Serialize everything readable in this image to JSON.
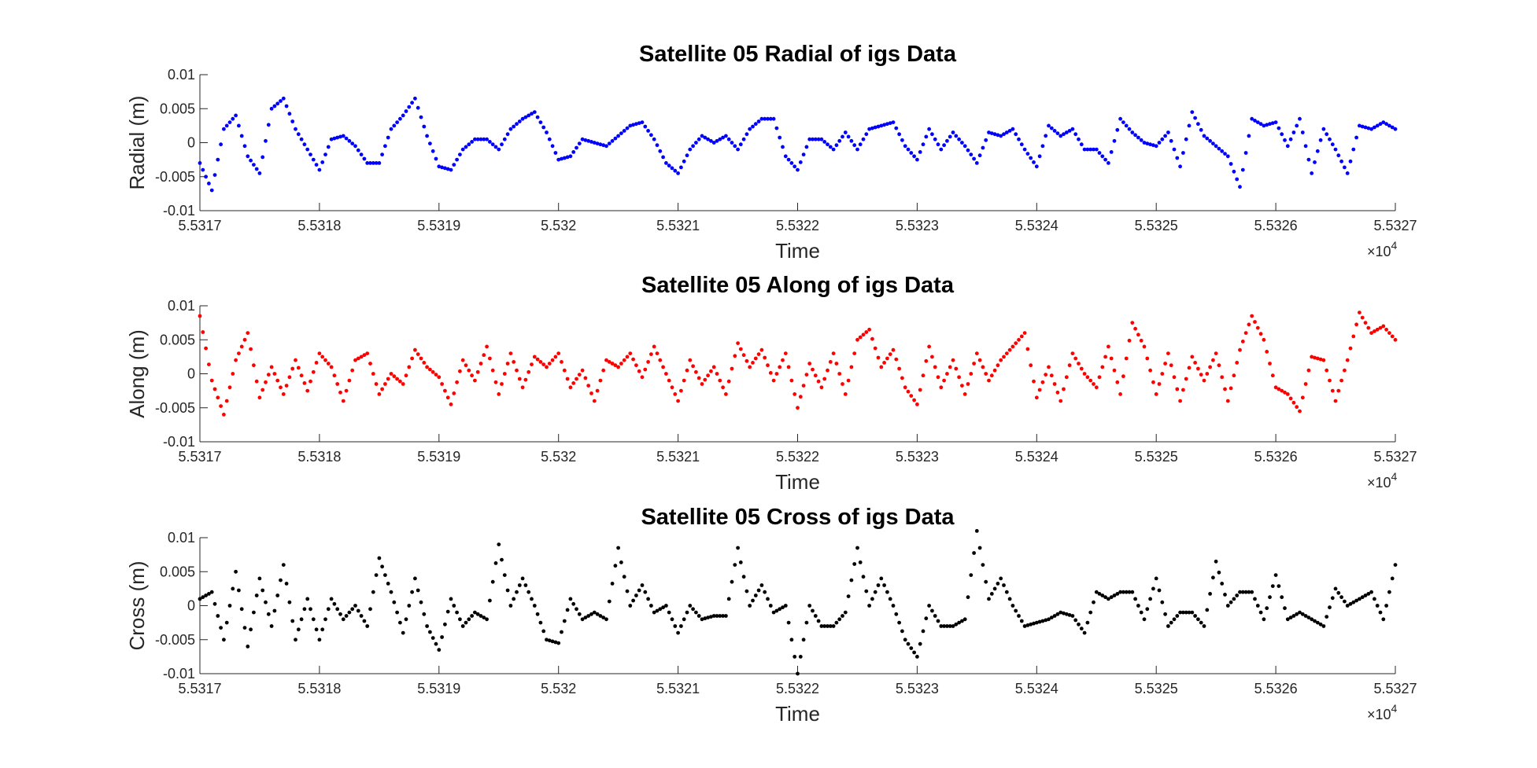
{
  "chart_data": [
    {
      "type": "scatter",
      "title": "Satellite 05 Radial of igs Data",
      "xlabel": "Time",
      "ylabel": "Radial (m)",
      "x_multiplier": "×10",
      "x_multiplier_exp": "4",
      "xlim": [
        55317,
        55327
      ],
      "ylim": [
        -0.01,
        0.01
      ],
      "xticks": [
        "5.5317",
        "5.5318",
        "5.5319",
        "5.532",
        "5.5321",
        "5.5322",
        "5.5323",
        "5.5324",
        "5.5325",
        "5.5326",
        "5.5327"
      ],
      "yticks": [
        "-0.01",
        "-0.005",
        "0",
        "0.005",
        "0.01"
      ],
      "color": "#0000ff",
      "series": [
        {
          "x": [
            55317.0,
            55317.1,
            55317.2,
            55317.3,
            55317.4,
            55317.5,
            55317.6,
            55317.7,
            55317.8,
            55317.9,
            55318.0,
            55318.1,
            55318.2,
            55318.3,
            55318.4,
            55318.5,
            55318.6,
            55318.7,
            55318.8,
            55318.9,
            55319.0,
            55319.1,
            55319.2,
            55319.3,
            55319.4,
            55319.5,
            55319.6,
            55319.7,
            55319.8,
            55319.9,
            55320.0,
            55320.1,
            55320.2,
            55320.3,
            55320.4,
            55320.5,
            55320.6,
            55320.7,
            55320.8,
            55320.9,
            55321.0,
            55321.1,
            55321.2,
            55321.3,
            55321.4,
            55321.5,
            55321.6,
            55321.7,
            55321.8,
            55321.9,
            55322.0,
            55322.1,
            55322.2,
            55322.3,
            55322.4,
            55322.5,
            55322.6,
            55322.7,
            55322.8,
            55322.9,
            55323.0,
            55323.1,
            55323.2,
            55323.3,
            55323.4,
            55323.5,
            55323.6,
            55323.7,
            55323.8,
            55323.9,
            55324.0,
            55324.1,
            55324.2,
            55324.3,
            55324.4,
            55324.5,
            55324.6,
            55324.7,
            55324.8,
            55324.9,
            55325.0,
            55325.1,
            55325.2,
            55325.3,
            55325.4,
            55325.5,
            55325.6,
            55325.7,
            55325.8,
            55325.9,
            55326.0,
            55326.1,
            55326.2,
            55326.3,
            55326.4,
            55326.5,
            55326.6,
            55326.7,
            55326.8,
            55326.9,
            55327.0
          ],
          "y": [
            -0.003,
            -0.007,
            0.002,
            0.004,
            -0.002,
            -0.0045,
            0.005,
            0.0065,
            0.002,
            -0.001,
            -0.004,
            0.0005,
            0.001,
            -0.0005,
            -0.003,
            -0.003,
            0.002,
            0.004,
            0.0065,
            0.001,
            -0.0035,
            -0.004,
            -0.001,
            0.0005,
            0.0005,
            -0.001,
            0.002,
            0.0035,
            0.0045,
            0.0015,
            -0.0025,
            -0.002,
            0.0005,
            0.0,
            -0.0005,
            0.001,
            0.0025,
            0.003,
            0.0005,
            -0.003,
            -0.0045,
            -0.001,
            0.001,
            0.0,
            0.001,
            -0.001,
            0.002,
            0.0035,
            0.0035,
            -0.002,
            -0.004,
            0.0005,
            0.0005,
            -0.001,
            0.0015,
            -0.001,
            0.002,
            0.0025,
            0.003,
            -0.0005,
            -0.0025,
            0.002,
            -0.001,
            0.0015,
            -0.0005,
            -0.003,
            0.0015,
            0.001,
            0.002,
            -0.001,
            -0.0035,
            0.0025,
            0.001,
            0.002,
            -0.001,
            -0.001,
            -0.003,
            0.0035,
            0.0015,
            0.0,
            -0.0005,
            0.0015,
            -0.0035,
            0.0045,
            0.001,
            -0.0005,
            -0.002,
            -0.0065,
            0.0035,
            0.0025,
            0.003,
            -0.0005,
            0.0035,
            -0.0045,
            0.002,
            -0.001,
            -0.0045,
            0.0025,
            0.002,
            0.003,
            0.002
          ]
        }
      ]
    },
    {
      "type": "scatter",
      "title": "Satellite 05 Along of igs Data",
      "xlabel": "Time",
      "ylabel": "Along (m)",
      "x_multiplier": "×10",
      "x_multiplier_exp": "4",
      "xlim": [
        55317,
        55327
      ],
      "ylim": [
        -0.01,
        0.01
      ],
      "xticks": [
        "5.5317",
        "5.5318",
        "5.5319",
        "5.532",
        "5.5321",
        "5.5322",
        "5.5323",
        "5.5324",
        "5.5325",
        "5.5326",
        "5.5327"
      ],
      "yticks": [
        "-0.01",
        "-0.005",
        "0",
        "0.005",
        "0.01"
      ],
      "color": "#ff0000",
      "series": [
        {
          "x": [
            55317.0,
            55317.1,
            55317.2,
            55317.3,
            55317.4,
            55317.5,
            55317.6,
            55317.7,
            55317.8,
            55317.9,
            55318.0,
            55318.1,
            55318.2,
            55318.3,
            55318.4,
            55318.5,
            55318.6,
            55318.7,
            55318.8,
            55318.9,
            55319.0,
            55319.1,
            55319.2,
            55319.3,
            55319.4,
            55319.5,
            55319.6,
            55319.7,
            55319.8,
            55319.9,
            55320.0,
            55320.1,
            55320.2,
            55320.3,
            55320.4,
            55320.5,
            55320.6,
            55320.7,
            55320.8,
            55320.9,
            55321.0,
            55321.1,
            55321.2,
            55321.3,
            55321.4,
            55321.5,
            55321.6,
            55321.7,
            55321.8,
            55321.9,
            55322.0,
            55322.1,
            55322.2,
            55322.3,
            55322.4,
            55322.5,
            55322.6,
            55322.7,
            55322.8,
            55322.9,
            55323.0,
            55323.1,
            55323.2,
            55323.3,
            55323.4,
            55323.5,
            55323.6,
            55323.7,
            55323.8,
            55323.9,
            55324.0,
            55324.1,
            55324.2,
            55324.3,
            55324.4,
            55324.5,
            55324.6,
            55324.7,
            55324.8,
            55324.9,
            55325.0,
            55325.1,
            55325.2,
            55325.3,
            55325.4,
            55325.5,
            55325.6,
            55325.7,
            55325.8,
            55325.9,
            55326.0,
            55326.1,
            55326.2,
            55326.3,
            55326.4,
            55326.5,
            55326.6,
            55326.7,
            55326.8,
            55326.9,
            55327.0
          ],
          "y": [
            0.0085,
            -0.001,
            -0.006,
            0.002,
            0.006,
            -0.0035,
            0.001,
            -0.003,
            0.002,
            -0.0025,
            0.003,
            0.001,
            -0.004,
            0.002,
            0.003,
            -0.003,
            0.0,
            -0.0015,
            0.0035,
            0.001,
            -0.0005,
            -0.0045,
            0.002,
            -0.001,
            0.004,
            -0.003,
            0.003,
            -0.002,
            0.0025,
            0.001,
            0.003,
            -0.002,
            0.0005,
            -0.004,
            0.002,
            0.001,
            0.003,
            -0.0005,
            0.004,
            0.0,
            -0.004,
            0.002,
            -0.0015,
            0.001,
            -0.003,
            0.0045,
            0.001,
            0.0035,
            -0.001,
            0.003,
            -0.005,
            0.0015,
            -0.002,
            0.003,
            -0.003,
            0.005,
            0.0065,
            0.001,
            0.0035,
            -0.002,
            -0.0045,
            0.004,
            -0.002,
            0.002,
            -0.003,
            0.003,
            -0.001,
            0.002,
            0.004,
            0.006,
            -0.0035,
            0.001,
            -0.004,
            0.003,
            0.0,
            -0.002,
            0.004,
            -0.003,
            0.0075,
            0.004,
            -0.003,
            0.003,
            -0.004,
            0.0025,
            -0.001,
            0.003,
            -0.004,
            0.0035,
            0.0085,
            0.005,
            -0.002,
            -0.003,
            -0.0055,
            0.0025,
            0.002,
            -0.004,
            0.002,
            0.009,
            0.006,
            0.007,
            0.005
          ]
        }
      ]
    },
    {
      "type": "scatter",
      "title": "Satellite 05 Cross of igs Data",
      "xlabel": "Time",
      "ylabel": "Cross (m)",
      "x_multiplier": "×10",
      "x_multiplier_exp": "4",
      "xlim": [
        55317,
        55327
      ],
      "ylim": [
        -0.01,
        0.01
      ],
      "xticks": [
        "5.5317",
        "5.5318",
        "5.5319",
        "5.532",
        "5.5321",
        "5.5322",
        "5.5323",
        "5.5324",
        "5.5325",
        "5.5326",
        "5.5327"
      ],
      "yticks": [
        "-0.01",
        "-0.005",
        "0",
        "0.005",
        "0.01"
      ],
      "color": "#000000",
      "series": [
        {
          "x": [
            55317.0,
            55317.1,
            55317.2,
            55317.3,
            55317.4,
            55317.5,
            55317.6,
            55317.7,
            55317.8,
            55317.9,
            55318.0,
            55318.1,
            55318.2,
            55318.3,
            55318.4,
            55318.5,
            55318.6,
            55318.7,
            55318.8,
            55318.9,
            55319.0,
            55319.1,
            55319.2,
            55319.3,
            55319.4,
            55319.5,
            55319.6,
            55319.7,
            55319.8,
            55319.9,
            55320.0,
            55320.1,
            55320.2,
            55320.3,
            55320.4,
            55320.5,
            55320.6,
            55320.7,
            55320.8,
            55320.9,
            55321.0,
            55321.1,
            55321.2,
            55321.3,
            55321.4,
            55321.5,
            55321.6,
            55321.7,
            55321.8,
            55321.9,
            55322.0,
            55322.1,
            55322.2,
            55322.3,
            55322.4,
            55322.5,
            55322.6,
            55322.7,
            55322.8,
            55322.9,
            55323.0,
            55323.1,
            55323.2,
            55323.3,
            55323.4,
            55323.5,
            55323.6,
            55323.7,
            55323.8,
            55323.9,
            55324.0,
            55324.1,
            55324.2,
            55324.3,
            55324.4,
            55324.5,
            55324.6,
            55324.7,
            55324.8,
            55324.9,
            55325.0,
            55325.1,
            55325.2,
            55325.3,
            55325.4,
            55325.5,
            55325.6,
            55325.7,
            55325.8,
            55325.9,
            55326.0,
            55326.1,
            55326.2,
            55326.3,
            55326.4,
            55326.5,
            55326.6,
            55326.7,
            55326.8,
            55326.9,
            55327.0
          ],
          "y": [
            0.001,
            0.002,
            -0.005,
            0.005,
            -0.006,
            0.004,
            -0.003,
            0.006,
            -0.005,
            0.001,
            -0.005,
            0.001,
            -0.002,
            0.0,
            -0.003,
            0.007,
            0.002,
            -0.004,
            0.004,
            -0.003,
            -0.0065,
            0.001,
            -0.003,
            -0.001,
            -0.002,
            0.009,
            0.0,
            0.004,
            0.0,
            -0.005,
            -0.0055,
            0.001,
            -0.002,
            -0.001,
            -0.002,
            0.0085,
            0.0,
            0.003,
            -0.001,
            0.0,
            -0.004,
            0.0,
            -0.002,
            -0.0015,
            -0.0015,
            0.0085,
            0.0,
            0.003,
            -0.001,
            0.0,
            -0.01,
            0.0,
            -0.003,
            -0.003,
            -0.001,
            0.0085,
            0.0,
            0.004,
            0.0,
            -0.005,
            -0.0075,
            0.0,
            -0.003,
            -0.003,
            -0.002,
            0.011,
            0.001,
            0.004,
            0.0,
            -0.003,
            -0.0025,
            -0.002,
            -0.001,
            -0.0015,
            -0.004,
            0.002,
            0.001,
            0.002,
            0.002,
            -0.002,
            0.004,
            -0.003,
            -0.001,
            -0.001,
            -0.003,
            0.0065,
            0.0,
            0.002,
            0.002,
            -0.002,
            0.0045,
            -0.002,
            -0.001,
            -0.002,
            -0.003,
            0.0025,
            0.0,
            0.001,
            0.002,
            -0.002,
            0.006
          ]
        }
      ]
    }
  ]
}
